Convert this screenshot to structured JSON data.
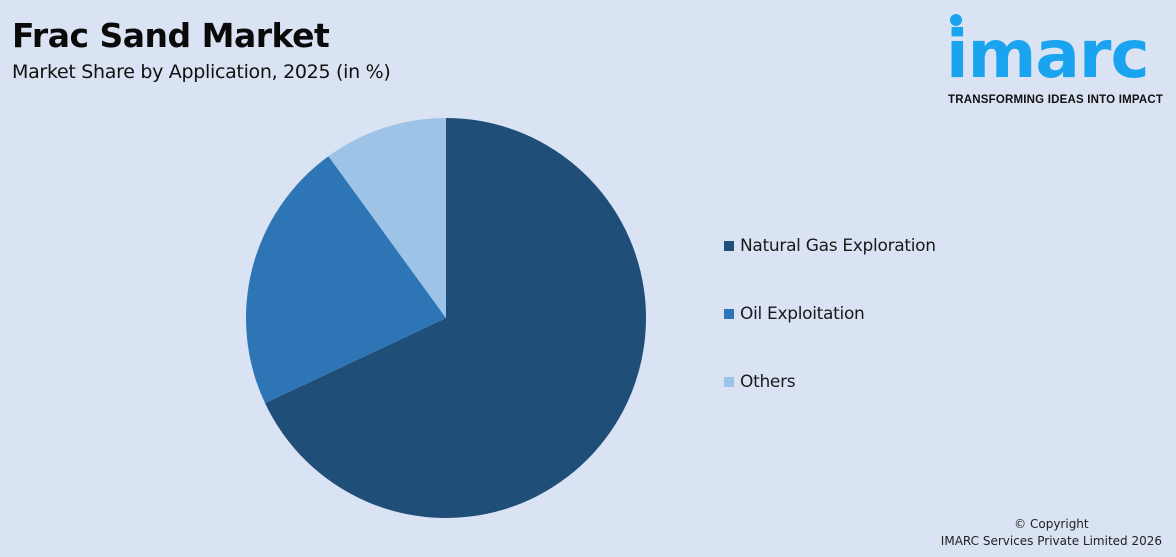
{
  "header": {
    "title": "Frac Sand Market",
    "subtitle": "Market Share by Application, 2025 (in %)"
  },
  "logo": {
    "word": "imarc",
    "tagline": "TRANSFORMING IDEAS INTO IMPACT",
    "color": "#1aa3ee"
  },
  "legend": {
    "items": [
      {
        "label": "Natural Gas Exploration",
        "color": "#1f4e79"
      },
      {
        "label": "Oil Exploitation",
        "color": "#2e75b6"
      },
      {
        "label": "Others",
        "color": "#9dc3e6"
      }
    ]
  },
  "footer": {
    "line1": "© Copyright",
    "line2": "IMARC Services Private Limited 2026"
  },
  "chart_data": {
    "type": "pie",
    "title": "Frac Sand Market",
    "subtitle": "Market Share by Application, 2025 (in %)",
    "categories": [
      "Natural Gas Exploration",
      "Oil Exploitation",
      "Others"
    ],
    "values": [
      68,
      22,
      10
    ],
    "colors": [
      "#1f4e79",
      "#2e75b6",
      "#9dc3e6"
    ],
    "start_angle": "12 o'clock, clockwise",
    "legend_position": "right",
    "data_labels": false
  }
}
